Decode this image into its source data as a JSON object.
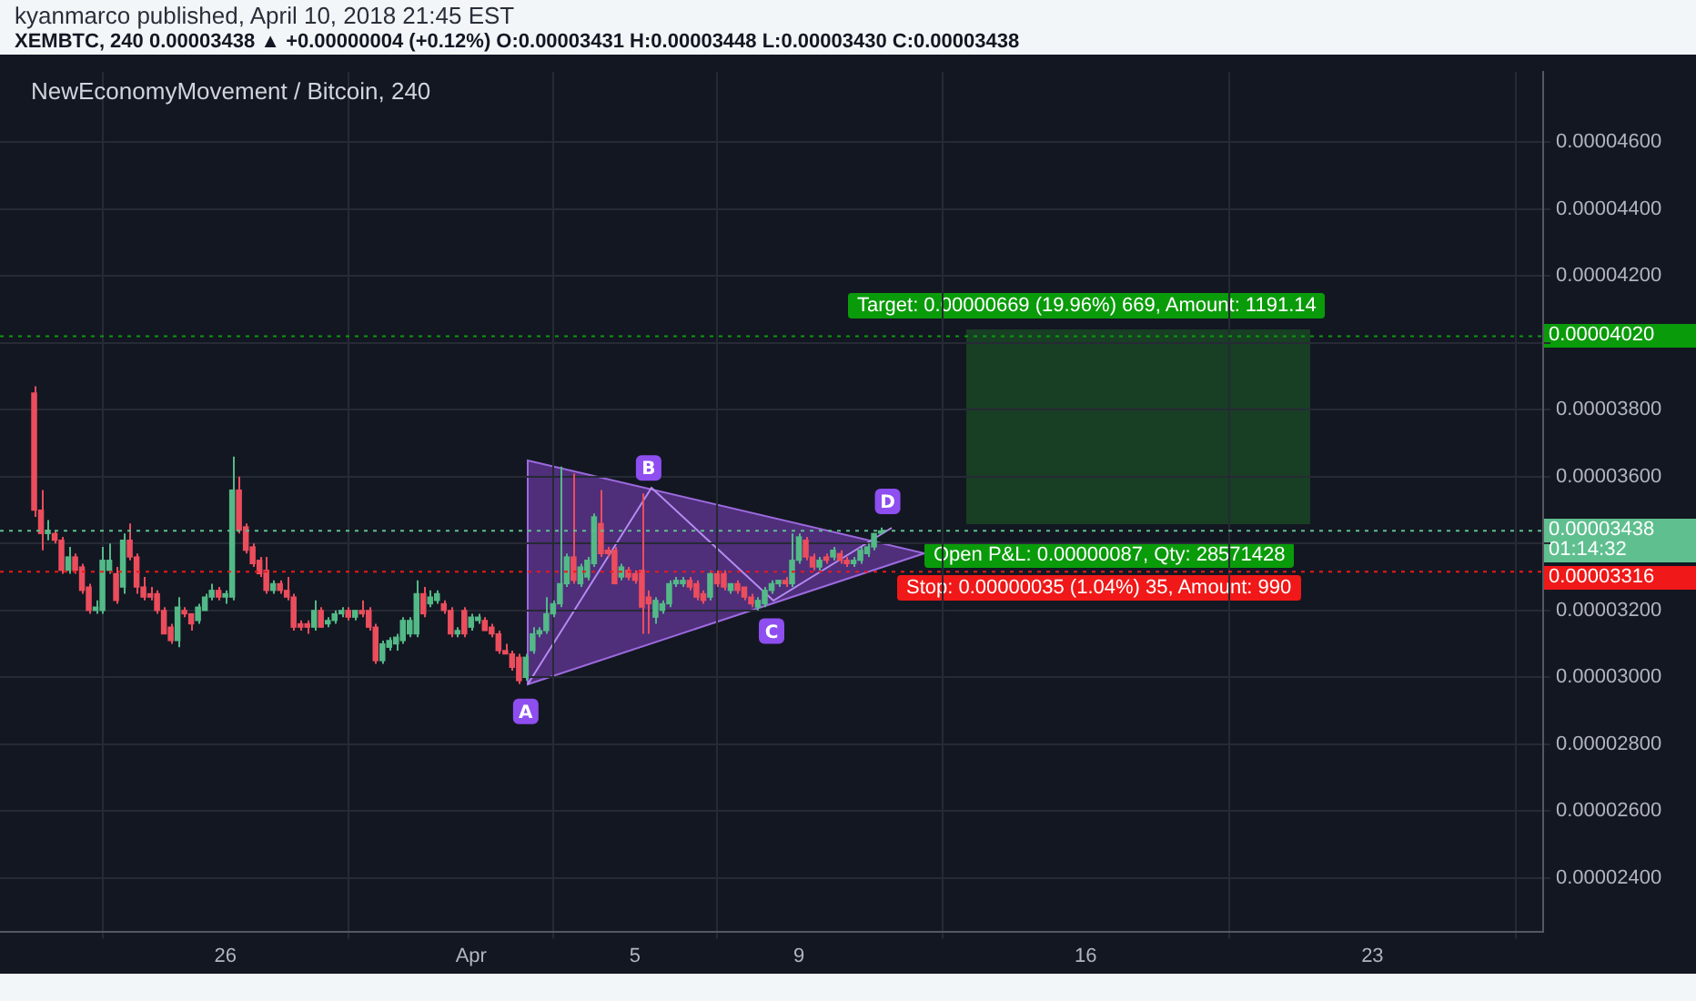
{
  "chart_data": {
    "type": "candlestick",
    "title": "NewEconomyMovement / Bitcoin, 240",
    "annotations": [
      "kyanmarco published, April 10, 2018 21:45 EST",
      "XEMBTC, 240 0.00003438 ▲ +0.00000004 (+0.12%) O:0.00003431 H:0.00003448 L:0.00003430 C:0.00003438",
      "01:14:32",
      "Target: 0.00000669 (19.96%) 669, Amount: 1191.14",
      "Open P&L: 0.00000087, Qty: 28571428",
      "Stop: 0.00000035 (1.04%) 35, Amount: 990",
      {
        "text": "A",
        "x": "2018-04-02T08:00",
        "y": 2.98e-05
      },
      {
        "text": "B",
        "x": "2018-04-05T08:00",
        "y": 3.55e-05
      },
      {
        "text": "C",
        "x": "2018-04-08T08:00",
        "y": 3.22e-05
      },
      {
        "text": "D",
        "x": "2018-04-11T04:00",
        "y": 3.45e-05
      }
    ],
    "x": [
      "2018-03-21T08:00",
      "2018-03-21T12:00",
      "2018-03-21T16:00",
      "2018-03-21T20:00",
      "2018-03-22T00:00",
      "2018-03-22T04:00",
      "2018-03-22T08:00",
      "2018-03-22T12:00",
      "2018-03-22T16:00",
      "2018-03-22T20:00",
      "2018-03-23T00:00",
      "2018-03-23T04:00",
      "2018-03-23T08:00",
      "2018-03-23T12:00",
      "2018-03-23T16:00",
      "2018-03-23T20:00",
      "2018-03-24T00:00",
      "2018-03-24T04:00",
      "2018-03-24T08:00",
      "2018-03-24T12:00",
      "2018-03-24T16:00",
      "2018-03-24T20:00",
      "2018-03-25T00:00",
      "2018-03-25T04:00",
      "2018-03-25T08:00",
      "2018-03-25T12:00",
      "2018-03-25T16:00",
      "2018-03-25T20:00",
      "2018-03-26T00:00",
      "2018-03-26T04:00",
      "2018-03-26T08:00",
      "2018-03-26T12:00",
      "2018-03-26T16:00",
      "2018-03-26T20:00",
      "2018-03-27T00:00",
      "2018-03-27T04:00",
      "2018-03-27T08:00",
      "2018-03-27T12:00",
      "2018-03-27T16:00",
      "2018-03-27T20:00",
      "2018-03-28T00:00",
      "2018-03-28T04:00",
      "2018-03-28T08:00",
      "2018-03-28T12:00",
      "2018-03-28T16:00",
      "2018-03-28T20:00",
      "2018-03-29T00:00",
      "2018-03-29T04:00",
      "2018-03-29T08:00",
      "2018-03-29T12:00",
      "2018-03-29T16:00",
      "2018-03-29T20:00",
      "2018-03-30T00:00",
      "2018-03-30T04:00",
      "2018-03-30T08:00",
      "2018-03-30T12:00",
      "2018-03-30T16:00",
      "2018-03-30T20:00",
      "2018-03-31T00:00",
      "2018-03-31T04:00",
      "2018-03-31T08:00",
      "2018-03-31T12:00",
      "2018-03-31T16:00",
      "2018-03-31T20:00",
      "2018-04-01T00:00",
      "2018-04-01T04:00",
      "2018-04-01T08:00",
      "2018-04-01T12:00",
      "2018-04-01T16:00",
      "2018-04-01T20:00",
      "2018-04-02T00:00",
      "2018-04-02T04:00",
      "2018-04-02T08:00",
      "2018-04-02T12:00",
      "2018-04-02T16:00",
      "2018-04-02T20:00",
      "2018-04-03T00:00",
      "2018-04-03T04:00",
      "2018-04-03T08:00",
      "2018-04-03T12:00",
      "2018-04-03T16:00",
      "2018-04-03T20:00",
      "2018-04-04T00:00",
      "2018-04-04T04:00",
      "2018-04-04T08:00",
      "2018-04-04T12:00",
      "2018-04-04T16:00",
      "2018-04-04T20:00",
      "2018-04-05T00:00",
      "2018-04-05T04:00",
      "2018-04-05T08:00",
      "2018-04-05T12:00",
      "2018-04-05T16:00",
      "2018-04-05T20:00",
      "2018-04-06T00:00",
      "2018-04-06T04:00",
      "2018-04-06T08:00",
      "2018-04-06T12:00",
      "2018-04-06T16:00",
      "2018-04-06T20:00",
      "2018-04-07T00:00",
      "2018-04-07T04:00",
      "2018-04-07T08:00",
      "2018-04-07T12:00",
      "2018-04-07T16:00",
      "2018-04-07T20:00",
      "2018-04-08T00:00",
      "2018-04-08T04:00",
      "2018-04-08T08:00",
      "2018-04-08T12:00",
      "2018-04-08T16:00",
      "2018-04-08T20:00",
      "2018-04-09T00:00",
      "2018-04-09T04:00",
      "2018-04-09T08:00",
      "2018-04-09T12:00",
      "2018-04-09T16:00",
      "2018-04-09T20:00",
      "2018-04-10T00:00",
      "2018-04-10T04:00",
      "2018-04-10T08:00",
      "2018-04-10T12:00",
      "2018-04-10T16:00",
      "2018-04-10T20:00",
      "2018-04-11T00:00"
    ],
    "ohlc": [
      [
        3.85e-05,
        3.87e-05,
        3.48e-05,
        3.5e-05
      ],
      [
        3.5e-05,
        3.56e-05,
        3.38e-05,
        3.43e-05
      ],
      [
        3.43e-05,
        3.47e-05,
        3.41e-05,
        3.44e-05
      ],
      [
        3.43e-05,
        3.44e-05,
        3.4e-05,
        3.41e-05
      ],
      [
        3.41e-05,
        3.42e-05,
        3.31e-05,
        3.32e-05
      ],
      [
        3.32e-05,
        3.39e-05,
        3.31e-05,
        3.36e-05
      ],
      [
        3.36e-05,
        3.37e-05,
        3.31e-05,
        3.32e-05
      ],
      [
        3.33e-05,
        3.34e-05,
        3.25e-05,
        3.26e-05
      ],
      [
        3.27e-05,
        3.28e-05,
        3.19e-05,
        3.2e-05
      ],
      [
        3.2e-05,
        3.23e-05,
        3.19e-05,
        3.21e-05
      ],
      [
        3.2e-05,
        3.39e-05,
        3.19e-05,
        3.35e-05
      ],
      [
        3.32e-05,
        3.4e-05,
        3.31e-05,
        3.35e-05
      ],
      [
        3.31e-05,
        3.33e-05,
        3.22e-05,
        3.23e-05
      ],
      [
        3.27e-05,
        3.43e-05,
        3.25e-05,
        3.41e-05
      ],
      [
        3.41e-05,
        3.46e-05,
        3.35e-05,
        3.36e-05
      ],
      [
        3.36e-05,
        3.37e-05,
        3.25e-05,
        3.27e-05
      ],
      [
        3.27e-05,
        3.3e-05,
        3.23e-05,
        3.24e-05
      ],
      [
        3.25e-05,
        3.27e-05,
        3.23e-05,
        3.24e-05
      ],
      [
        3.25e-05,
        3.26e-05,
        3.19e-05,
        3.2e-05
      ],
      [
        3.2e-05,
        3.21e-05,
        3.13e-05,
        3.13e-05
      ],
      [
        3.15e-05,
        3.16e-05,
        3.1e-05,
        3.11e-05
      ],
      [
        3.11e-05,
        3.24e-05,
        3.09e-05,
        3.21e-05
      ],
      [
        3.2e-05,
        3.21e-05,
        3.18e-05,
        3.19e-05
      ],
      [
        3.19e-05,
        3.19e-05,
        3.14e-05,
        3.16e-05
      ],
      [
        3.17e-05,
        3.22e-05,
        3.16e-05,
        3.21e-05
      ],
      [
        3.2e-05,
        3.25e-05,
        3.2e-05,
        3.24e-05
      ],
      [
        3.24e-05,
        3.28e-05,
        3.23e-05,
        3.26e-05
      ],
      [
        3.26e-05,
        3.27e-05,
        3.23e-05,
        3.24e-05
      ],
      [
        3.24e-05,
        3.26e-05,
        3.22e-05,
        3.25e-05
      ],
      [
        3.24e-05,
        3.66e-05,
        3.23e-05,
        3.56e-05
      ],
      [
        3.56e-05,
        3.6e-05,
        3.43e-05,
        3.44e-05
      ],
      [
        3.45e-05,
        3.46e-05,
        3.37e-05,
        3.38e-05
      ],
      [
        3.39e-05,
        3.4e-05,
        3.33e-05,
        3.34e-05
      ],
      [
        3.35e-05,
        3.36e-05,
        3.3e-05,
        3.31e-05
      ],
      [
        3.32e-05,
        3.36e-05,
        3.25e-05,
        3.26e-05
      ],
      [
        3.26e-05,
        3.29e-05,
        3.25e-05,
        3.28e-05
      ],
      [
        3.28e-05,
        3.29e-05,
        3.25e-05,
        3.26e-05
      ],
      [
        3.26e-05,
        3.3e-05,
        3.23e-05,
        3.24e-05
      ],
      [
        3.24e-05,
        3.25e-05,
        3.14e-05,
        3.15e-05
      ],
      [
        3.16e-05,
        3.17e-05,
        3.14e-05,
        3.15e-05
      ],
      [
        3.16e-05,
        3.17e-05,
        3.13e-05,
        3.15e-05
      ],
      [
        3.15e-05,
        3.23e-05,
        3.14e-05,
        3.2e-05
      ],
      [
        3.2e-05,
        3.21e-05,
        3.15e-05,
        3.15e-05
      ],
      [
        3.16e-05,
        3.18e-05,
        3.15e-05,
        3.17e-05
      ],
      [
        3.17e-05,
        3.2e-05,
        3.16e-05,
        3.19e-05
      ],
      [
        3.19e-05,
        3.21e-05,
        3.18e-05,
        3.2e-05
      ],
      [
        3.2e-05,
        3.21e-05,
        3.17e-05,
        3.18e-05
      ],
      [
        3.18e-05,
        3.2e-05,
        3.17e-05,
        3.2e-05
      ],
      [
        3.2e-05,
        3.23e-05,
        3.18e-05,
        3.19e-05
      ],
      [
        3.2e-05,
        3.21e-05,
        3.14e-05,
        3.15e-05
      ],
      [
        3.15e-05,
        3.16e-05,
        3.04e-05,
        3.05e-05
      ],
      [
        3.05e-05,
        3.11e-05,
        3.04e-05,
        3.1e-05
      ],
      [
        3.09e-05,
        3.12e-05,
        3.08e-05,
        3.11e-05
      ],
      [
        3.1e-05,
        3.13e-05,
        3.08e-05,
        3.12e-05
      ],
      [
        3.11e-05,
        3.18e-05,
        3.1e-05,
        3.17e-05
      ],
      [
        3.13e-05,
        3.18e-05,
        3.12e-05,
        3.17e-05
      ],
      [
        3.13e-05,
        3.29e-05,
        3.12e-05,
        3.25e-05
      ],
      [
        3.25e-05,
        3.27e-05,
        3.18e-05,
        3.19e-05
      ],
      [
        3.22e-05,
        3.26e-05,
        3.21e-05,
        3.24e-05
      ],
      [
        3.23e-05,
        3.26e-05,
        3.22e-05,
        3.25e-05
      ],
      [
        3.22e-05,
        3.23e-05,
        3.19e-05,
        3.2e-05
      ],
      [
        3.2e-05,
        3.21e-05,
        3.12e-05,
        3.13e-05
      ],
      [
        3.13e-05,
        3.15e-05,
        3.12e-05,
        3.14e-05
      ],
      [
        3.2e-05,
        3.21e-05,
        3.12e-05,
        3.13e-05
      ],
      [
        3.15e-05,
        3.19e-05,
        3.14e-05,
        3.18e-05
      ],
      [
        3.17e-05,
        3.19e-05,
        3.16e-05,
        3.18e-05
      ],
      [
        3.17e-05,
        3.18e-05,
        3.14e-05,
        3.14e-05
      ],
      [
        3.15e-05,
        3.16e-05,
        3.12e-05,
        3.13e-05
      ],
      [
        3.13e-05,
        3.14e-05,
        3.07e-05,
        3.08e-05
      ],
      [
        3.08e-05,
        3.1e-05,
        3.07e-05,
        3.07e-05
      ],
      [
        3.07e-05,
        3.08e-05,
        3.02e-05,
        3.03e-05
      ],
      [
        3.06e-05,
        3.07e-05,
        2.98e-05,
        2.99e-05
      ],
      [
        3e-05,
        3.07e-05,
        2.99e-05,
        3.06e-05
      ],
      [
        3.08e-05,
        3.15e-05,
        3.07e-05,
        3.13e-05
      ],
      [
        3.13e-05,
        3.15e-05,
        3.12e-05,
        3.14e-05
      ],
      [
        3.14e-05,
        3.24e-05,
        3.13e-05,
        3.19e-05
      ],
      [
        3.19e-05,
        3.23e-05,
        3.18e-05,
        3.22e-05
      ],
      [
        3.22e-05,
        3.63e-05,
        3.21e-05,
        3.28e-05
      ],
      [
        3.28e-05,
        3.37e-05,
        3.27e-05,
        3.36e-05
      ],
      [
        3.36e-05,
        3.61e-05,
        3.28e-05,
        3.29e-05
      ],
      [
        3.28e-05,
        3.34e-05,
        3.27e-05,
        3.33e-05
      ],
      [
        3.3e-05,
        3.36e-05,
        3.29e-05,
        3.35e-05
      ],
      [
        3.34e-05,
        3.49e-05,
        3.33e-05,
        3.48e-05
      ],
      [
        3.46e-05,
        3.56e-05,
        3.36e-05,
        3.37e-05
      ],
      [
        3.38e-05,
        3.39e-05,
        3.36e-05,
        3.37e-05
      ],
      [
        3.38e-05,
        3.39e-05,
        3.28e-05,
        3.28e-05
      ],
      [
        3.3e-05,
        3.34e-05,
        3.29e-05,
        3.33e-05
      ],
      [
        3.32e-05,
        3.33e-05,
        3.29e-05,
        3.3e-05
      ],
      [
        3.31e-05,
        3.32e-05,
        3.28e-05,
        3.29e-05
      ],
      [
        3.32e-05,
        3.55e-05,
        3.13e-05,
        3.21e-05
      ],
      [
        3.24e-05,
        3.26e-05,
        3.13e-05,
        3.22e-05
      ],
      [
        3.18e-05,
        3.24e-05,
        3.16e-05,
        3.23e-05
      ],
      [
        3.2e-05,
        3.23e-05,
        3.19e-05,
        3.22e-05
      ],
      [
        3.22e-05,
        3.29e-05,
        3.21e-05,
        3.28e-05
      ],
      [
        3.28e-05,
        3.3e-05,
        3.27e-05,
        3.29e-05
      ],
      [
        3.28e-05,
        3.3e-05,
        3.27e-05,
        3.29e-05
      ],
      [
        3.29e-05,
        3.3e-05,
        3.26e-05,
        3.27e-05
      ],
      [
        3.28e-05,
        3.29e-05,
        3.23e-05,
        3.24e-05
      ],
      [
        3.25e-05,
        3.26e-05,
        3.22e-05,
        3.23e-05
      ],
      [
        3.24e-05,
        3.32e-05,
        3.23e-05,
        3.31e-05
      ],
      [
        3.31e-05,
        3.32e-05,
        3.27e-05,
        3.28e-05
      ],
      [
        3.31e-05,
        3.32e-05,
        3.26e-05,
        3.27e-05
      ],
      [
        3.26e-05,
        3.28e-05,
        3.25e-05,
        3.28e-05
      ],
      [
        3.28e-05,
        3.29e-05,
        3.25e-05,
        3.26e-05
      ],
      [
        3.27e-05,
        3.27e-05,
        3.23e-05,
        3.24e-05
      ],
      [
        3.24e-05,
        3.25e-05,
        3.21e-05,
        3.22e-05
      ],
      [
        3.21e-05,
        3.24e-05,
        3.2e-05,
        3.23e-05
      ],
      [
        3.22e-05,
        3.27e-05,
        3.21e-05,
        3.26e-05
      ],
      [
        3.26e-05,
        3.29e-05,
        3.25e-05,
        3.28e-05
      ],
      [
        3.28e-05,
        3.29e-05,
        3.27e-05,
        3.29e-05
      ],
      [
        3.29e-05,
        3.3e-05,
        3.27e-05,
        3.28e-05
      ],
      [
        3.28e-05,
        3.43e-05,
        3.27e-05,
        3.35e-05
      ],
      [
        3.35e-05,
        3.43e-05,
        3.34e-05,
        3.42e-05
      ],
      [
        3.41e-05,
        3.42e-05,
        3.35e-05,
        3.36e-05
      ],
      [
        3.36e-05,
        3.37e-05,
        3.32e-05,
        3.33e-05
      ],
      [
        3.33e-05,
        3.36e-05,
        3.32e-05,
        3.35e-05
      ],
      [
        3.36e-05,
        3.37e-05,
        3.34e-05,
        3.35e-05
      ],
      [
        3.36e-05,
        3.39e-05,
        3.35e-05,
        3.38e-05
      ],
      [
        3.37e-05,
        3.38e-05,
        3.34e-05,
        3.35e-05
      ],
      [
        3.35e-05,
        3.36e-05,
        3.33e-05,
        3.34e-05
      ],
      [
        3.34e-05,
        3.36e-05,
        3.33e-05,
        3.35e-05
      ],
      [
        3.35e-05,
        3.39e-05,
        3.34e-05,
        3.38e-05
      ],
      [
        3.37e-05,
        3.4e-05,
        3.36e-05,
        3.39e-05
      ],
      [
        3.39e-05,
        3.43e-05,
        3.38e-05,
        3.43e-05
      ],
      [
        3.431e-05,
        3.448e-05,
        3.43e-05,
        3.438e-05
      ]
    ],
    "colors": [
      "#eb4d5c",
      "#eb4d5c",
      "#53b987",
      "#eb4d5c",
      "#eb4d5c",
      "#53b987",
      "#eb4d5c",
      "#eb4d5c",
      "#eb4d5c",
      "#53b987",
      "#53b987",
      "#53b987",
      "#eb4d5c",
      "#53b987",
      "#eb4d5c",
      "#eb4d5c",
      "#eb4d5c",
      "#eb4d5c",
      "#eb4d5c",
      "#eb4d5c",
      "#eb4d5c",
      "#53b987",
      "#eb4d5c",
      "#eb4d5c",
      "#53b987",
      "#53b987",
      "#53b987",
      "#eb4d5c",
      "#53b987",
      "#53b987",
      "#eb4d5c",
      "#eb4d5c",
      "#eb4d5c",
      "#eb4d5c",
      "#eb4d5c",
      "#53b987",
      "#eb4d5c",
      "#eb4d5c",
      "#eb4d5c",
      "#eb4d5c",
      "#eb4d5c",
      "#53b987",
      "#eb4d5c",
      "#53b987",
      "#53b987",
      "#53b987",
      "#eb4d5c",
      "#53b987",
      "#eb4d5c",
      "#eb4d5c",
      "#eb4d5c",
      "#53b987",
      "#53b987",
      "#53b987",
      "#53b987",
      "#53b987",
      "#53b987",
      "#eb4d5c",
      "#53b987",
      "#53b987",
      "#eb4d5c",
      "#eb4d5c",
      "#53b987",
      "#eb4d5c",
      "#53b987",
      "#53b987",
      "#eb4d5c",
      "#eb4d5c",
      "#eb4d5c",
      "#eb4d5c",
      "#eb4d5c",
      "#eb4d5c",
      "#53b987",
      "#53b987",
      "#53b987",
      "#53b987",
      "#53b987",
      "#53b987",
      "#53b987",
      "#eb4d5c",
      "#53b987",
      "#53b987",
      "#53b987",
      "#eb4d5c",
      "#eb4d5c",
      "#eb4d5c",
      "#53b987",
      "#eb4d5c",
      "#eb4d5c",
      "#eb4d5c",
      "#eb4d5c",
      "#53b987",
      "#53b987",
      "#53b987",
      "#53b987",
      "#53b987",
      "#eb4d5c",
      "#eb4d5c",
      "#eb4d5c",
      "#53b987",
      "#eb4d5c",
      "#eb4d5c",
      "#53b987",
      "#eb4d5c",
      "#eb4d5c",
      "#eb4d5c",
      "#53b987",
      "#53b987",
      "#53b987",
      "#53b987",
      "#eb4d5c",
      "#53b987",
      "#53b987",
      "#eb4d5c",
      "#eb4d5c",
      "#53b987",
      "#eb4d5c",
      "#53b987",
      "#eb4d5c",
      "#eb4d5c",
      "#53b987",
      "#53b987",
      "#53b987",
      "#53b987",
      "#53b987"
    ],
    "xlim": [
      "2018-03-20T12:00",
      "2018-04-27T04:00"
    ],
    "xticks": [
      {
        "value": "2018-03-26",
        "label": "26"
      },
      {
        "value": "2018-04-01",
        "label": "Apr"
      },
      {
        "value": "2018-04-05",
        "label": "5"
      },
      {
        "value": "2018-04-09",
        "label": "9"
      },
      {
        "value": "2018-04-16",
        "label": "16"
      },
      {
        "value": "2018-04-23",
        "label": "23"
      }
    ],
    "ylim": [
      2.24e-05,
      4.81e-05
    ],
    "yticks": [
      {
        "value": 2.4e-05,
        "label": "0.00002400"
      },
      {
        "value": 2.6e-05,
        "label": "0.00002600"
      },
      {
        "value": 2.8e-05,
        "label": "0.00002800"
      },
      {
        "value": 3e-05,
        "label": "0.00003000"
      },
      {
        "value": 3.2e-05,
        "label": "0.00003200"
      },
      {
        "value": 3.4e-05,
        "label": null
      },
      {
        "value": 3.6e-05,
        "label": "0.00003600"
      },
      {
        "value": 3.8e-05,
        "label": "0.00003800"
      },
      {
        "value": 4e-05,
        "label": null
      },
      {
        "value": 4.2e-05,
        "label": "0.00004200"
      },
      {
        "value": 4.4e-05,
        "label": "0.00004400"
      },
      {
        "value": 4.6e-05,
        "label": "0.00004600"
      }
    ],
    "ref_lines": [
      {
        "axis": "y",
        "value": 3.438e-05,
        "label": "0.00003438",
        "color": "#5fbf8f",
        "line_style": "dotted"
      },
      {
        "axis": "y",
        "value": 4.02e-05,
        "label": "0.00004020",
        "color": "#0a9b0a",
        "line_style": "dotted"
      },
      {
        "axis": "y",
        "value": 3.316e-05,
        "label": "0.00003316",
        "color": "#f01818",
        "line_style": "dotted"
      }
    ],
    "grid": true,
    "legend": false
  }
}
